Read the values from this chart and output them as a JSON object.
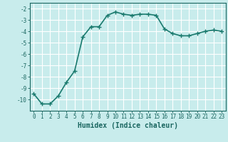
{
  "x": [
    0,
    1,
    2,
    3,
    4,
    5,
    6,
    7,
    8,
    9,
    10,
    11,
    12,
    13,
    14,
    15,
    16,
    17,
    18,
    19,
    20,
    21,
    22,
    23
  ],
  "y": [
    -9.5,
    -10.4,
    -10.4,
    -9.7,
    -8.5,
    -7.5,
    -4.5,
    -3.6,
    -3.6,
    -2.6,
    -2.3,
    -2.5,
    -2.6,
    -2.5,
    -2.5,
    -2.6,
    -3.8,
    -4.2,
    -4.4,
    -4.4,
    -4.2,
    -4.0,
    -3.9,
    -4.0
  ],
  "line_color": "#1a7a6e",
  "bg_color": "#c8ecec",
  "grid_color": "#ffffff",
  "xlabel": "Humidex (Indice chaleur)",
  "ylim": [
    -11,
    -1.5
  ],
  "xlim": [
    -0.5,
    23.5
  ],
  "yticks": [
    -10,
    -9,
    -8,
    -7,
    -6,
    -5,
    -4,
    -3,
    -2
  ],
  "xticks": [
    0,
    1,
    2,
    3,
    4,
    5,
    6,
    7,
    8,
    9,
    10,
    11,
    12,
    13,
    14,
    15,
    16,
    17,
    18,
    19,
    20,
    21,
    22,
    23
  ],
  "marker": "+",
  "linewidth": 1.2,
  "marker_size": 4,
  "font_color": "#1a6660",
  "tick_fontsize": 5.5,
  "xlabel_fontsize": 7.0
}
